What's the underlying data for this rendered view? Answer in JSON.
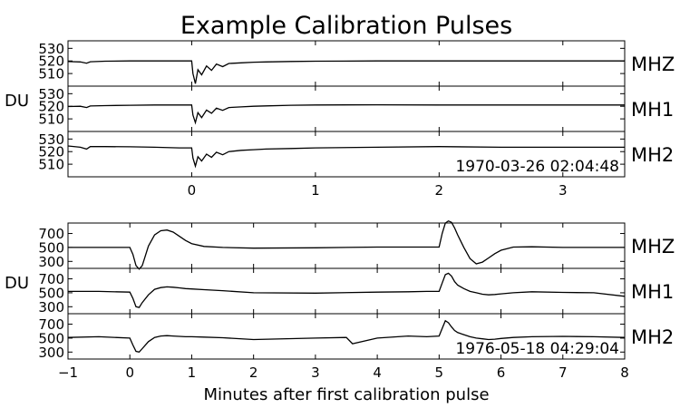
{
  "chart_data": {
    "type": "line",
    "title": "Example Calibration Pulses",
    "xlabel": "Minutes after first calibration pulse",
    "ylabel": "DU",
    "groups": [
      {
        "timestamp": "1970-03-26 02:04:48",
        "xlim": [
          -1,
          3.5
        ],
        "xticks": [
          0,
          1,
          2,
          3
        ],
        "ylim": [
          500,
          536
        ],
        "yticks": [
          510,
          520,
          530
        ],
        "xticks_visible": true,
        "series": [
          {
            "name": "MHZ",
            "x": [
              -1.0,
              -0.9,
              -0.85,
              -0.82,
              -0.7,
              -0.5,
              -0.3,
              -0.1,
              0.0,
              0.01,
              0.03,
              0.05,
              0.08,
              0.12,
              0.16,
              0.2,
              0.25,
              0.3,
              0.4,
              0.5,
              0.6,
              0.8,
              1.0,
              1.5,
              2.0,
              2.5,
              2.8,
              3.0,
              3.05,
              3.1,
              3.15,
              3.2,
              3.3,
              3.4,
              3.5
            ],
            "y": [
              519.5,
              519.2,
              518.2,
              519.4,
              519.8,
              520.0,
              520.0,
              520.0,
              520.0,
              510.0,
              502.0,
              513.0,
              509.0,
              516.0,
              512.5,
              517.5,
              515.5,
              518.0,
              518.5,
              519.0,
              519.2,
              519.6,
              519.8,
              520.0,
              520.0,
              520.0,
              520.0,
              520.0,
              520.0,
              520.0,
              520.0,
              520.0,
              520.0,
              520.0,
              520.0
            ]
          },
          {
            "name": "MH1",
            "x": [
              -1.0,
              -0.9,
              -0.85,
              -0.82,
              -0.7,
              -0.5,
              -0.3,
              -0.1,
              0.0,
              0.01,
              0.03,
              0.05,
              0.08,
              0.12,
              0.16,
              0.2,
              0.25,
              0.3,
              0.4,
              0.5,
              0.6,
              0.8,
              1.0,
              1.5,
              2.0,
              2.5,
              2.8,
              3.0,
              3.05,
              3.1,
              3.15,
              3.2,
              3.3,
              3.4,
              3.5
            ],
            "y": [
              519.8,
              520.0,
              519.0,
              520.2,
              520.5,
              520.8,
              521.0,
              521.0,
              521.0,
              513.0,
              507.0,
              515.0,
              511.0,
              517.0,
              514.5,
              518.5,
              516.8,
              519.0,
              519.5,
              520.0,
              520.3,
              520.8,
              521.0,
              521.2,
              521.0,
              521.0,
              521.0,
              521.0,
              521.0,
              521.0,
              521.0,
              521.0,
              521.0,
              521.0,
              521.0
            ]
          },
          {
            "name": "MH2",
            "x": [
              -1.0,
              -0.9,
              -0.85,
              -0.82,
              -0.7,
              -0.5,
              -0.3,
              -0.1,
              0.0,
              0.01,
              0.03,
              0.05,
              0.08,
              0.12,
              0.16,
              0.2,
              0.25,
              0.3,
              0.4,
              0.5,
              0.6,
              0.8,
              1.0,
              1.5,
              2.0,
              2.5,
              2.8,
              3.0,
              3.05,
              3.1,
              3.15,
              3.2,
              3.3,
              3.4,
              3.5
            ],
            "y": [
              524.5,
              523.5,
              522.0,
              524.0,
              524.0,
              523.8,
              523.5,
              523.0,
              523.0,
              515.0,
              508.5,
              516.0,
              512.5,
              518.0,
              515.5,
              519.5,
              517.5,
              520.0,
              521.0,
              521.5,
              522.0,
              522.5,
              523.0,
              523.5,
              524.0,
              523.5,
              523.5,
              523.5,
              523.5,
              523.5,
              523.5,
              523.5,
              523.5,
              523.5,
              523.5
            ]
          }
        ]
      },
      {
        "timestamp": "1976-05-18 04:29:04",
        "xlim": [
          -1,
          8
        ],
        "xticks": [
          -1,
          0,
          1,
          2,
          3,
          4,
          5,
          6,
          7,
          8
        ],
        "ylim": [
          200,
          850
        ],
        "yticks": [
          300,
          500,
          700
        ],
        "xticks_visible": true,
        "series": [
          {
            "name": "MHZ",
            "x": [
              -1.0,
              -0.5,
              0.0,
              0.05,
              0.1,
              0.15,
              0.2,
              0.3,
              0.4,
              0.5,
              0.6,
              0.7,
              0.8,
              0.9,
              1.0,
              1.2,
              1.5,
              2.0,
              3.0,
              4.0,
              4.5,
              4.8,
              5.0,
              5.05,
              5.1,
              5.15,
              5.2,
              5.25,
              5.3,
              5.4,
              5.5,
              5.6,
              5.7,
              5.8,
              5.9,
              6.0,
              6.2,
              6.5,
              7.0,
              7.5,
              8.0
            ],
            "y": [
              500.0,
              500.0,
              500.0,
              400.0,
              240.0,
              190.0,
              240.0,
              520.0,
              680.0,
              740.0,
              750.0,
              720.0,
              660.0,
              600.0,
              555.0,
              515.0,
              500.0,
              490.0,
              495.0,
              505.0,
              505.0,
              505.0,
              505.0,
              700.0,
              850.0,
              880.0,
              860.0,
              780.0,
              680.0,
              500.0,
              340.0,
              265.0,
              290.0,
              350.0,
              410.0,
              460.0,
              505.0,
              510.0,
              500.0,
              500.0,
              500.0
            ]
          },
          {
            "name": "MH1",
            "x": [
              -1.0,
              -0.5,
              0.0,
              0.05,
              0.1,
              0.15,
              0.2,
              0.3,
              0.4,
              0.5,
              0.6,
              0.7,
              0.8,
              0.9,
              1.0,
              1.2,
              1.5,
              2.0,
              3.0,
              4.0,
              4.5,
              4.8,
              5.0,
              5.05,
              5.1,
              5.15,
              5.2,
              5.25,
              5.3,
              5.4,
              5.5,
              5.6,
              5.7,
              5.8,
              5.9,
              6.0,
              6.2,
              6.5,
              7.0,
              7.5,
              8.0
            ],
            "y": [
              520.0,
              520.0,
              510.0,
              420.0,
              300.0,
              290.0,
              360.0,
              470.0,
              550.0,
              575.0,
              585.0,
              580.0,
              570.0,
              560.0,
              555.0,
              545.0,
              530.0,
              500.0,
              495.0,
              510.0,
              515.0,
              520.0,
              520.0,
              640.0,
              760.0,
              780.0,
              740.0,
              660.0,
              610.0,
              560.0,
              520.0,
              500.0,
              480.0,
              470.0,
              475.0,
              485.0,
              500.0,
              515.0,
              505.0,
              500.0,
              450.0
            ]
          },
          {
            "name": "MH2",
            "x": [
              -1.0,
              -0.5,
              0.0,
              0.05,
              0.1,
              0.15,
              0.2,
              0.3,
              0.4,
              0.5,
              0.6,
              0.7,
              0.8,
              0.9,
              1.0,
              1.2,
              1.5,
              2.0,
              3.0,
              3.5,
              3.6,
              4.0,
              4.5,
              4.8,
              5.0,
              5.05,
              5.1,
              5.15,
              5.2,
              5.25,
              5.3,
              5.4,
              5.5,
              5.6,
              5.7,
              5.8,
              5.9,
              6.0,
              6.2,
              6.5,
              7.0,
              7.5,
              8.0
            ],
            "y": [
              510.0,
              520.0,
              500.0,
              400.0,
              310.0,
              300.0,
              350.0,
              450.0,
              510.0,
              530.0,
              535.0,
              530.0,
              525.0,
              520.0,
              520.0,
              515.0,
              505.0,
              480.0,
              500.0,
              510.0,
              420.0,
              500.0,
              530.0,
              520.0,
              530.0,
              640.0,
              750.0,
              720.0,
              660.0,
              610.0,
              580.0,
              550.0,
              520.0,
              500.0,
              490.0,
              480.0,
              485.0,
              495.0,
              510.0,
              520.0,
              525.0,
              520.0,
              510.0
            ]
          }
        ]
      }
    ]
  }
}
